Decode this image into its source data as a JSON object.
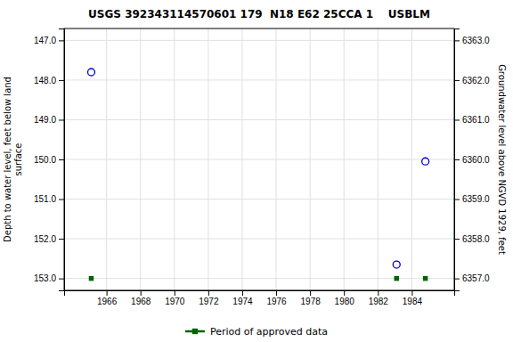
{
  "chart_data": {
    "type": "scatter",
    "title": "USGS 392343114570601 179  N18 E62 25CCA 1    USBLM",
    "ylabel": "Depth to water level, feet below land\nsurface",
    "y2label": "Groundwater level above NGVD 1929, feet",
    "x": [
      1965.1,
      1983.1,
      1984.8
    ],
    "series": [
      {
        "color": "#0000cc",
        "marker": "open-circle",
        "values": [
          147.8,
          152.65,
          150.05
        ]
      },
      {
        "name": "Period of approved data",
        "color": "#006400",
        "marker": "square",
        "values": [
          153.0,
          153.0,
          153.0
        ]
      }
    ],
    "xlim": [
      1963.5,
      1986.5
    ],
    "xticks": [
      1966,
      1968,
      1970,
      1972,
      1974,
      1976,
      1978,
      1980,
      1982,
      1984
    ],
    "ylim": [
      153.3,
      146.7
    ],
    "yticks": [
      {
        "value": 147,
        "label": "147.0"
      },
      {
        "value": 148,
        "label": "148.0"
      },
      {
        "value": 149,
        "label": "149.0"
      },
      {
        "value": 150,
        "label": "150.0"
      },
      {
        "value": 151,
        "label": "151.0"
      },
      {
        "value": 152,
        "label": "152.0"
      },
      {
        "value": 153,
        "label": "153.0"
      }
    ],
    "y2lim": [
      6356.7,
      6363.3
    ],
    "y2ticks": [
      {
        "value": 6357,
        "label": "6357.0"
      },
      {
        "value": 6358,
        "label": "6358.0"
      },
      {
        "value": 6359,
        "label": "6359.0"
      },
      {
        "value": 6360,
        "label": "6360.0"
      },
      {
        "value": 6361,
        "label": "6361.0"
      },
      {
        "value": 6362,
        "label": "6362.0"
      },
      {
        "value": 6363,
        "label": "6363.0"
      }
    ],
    "grid": true,
    "legend": "bottom"
  }
}
